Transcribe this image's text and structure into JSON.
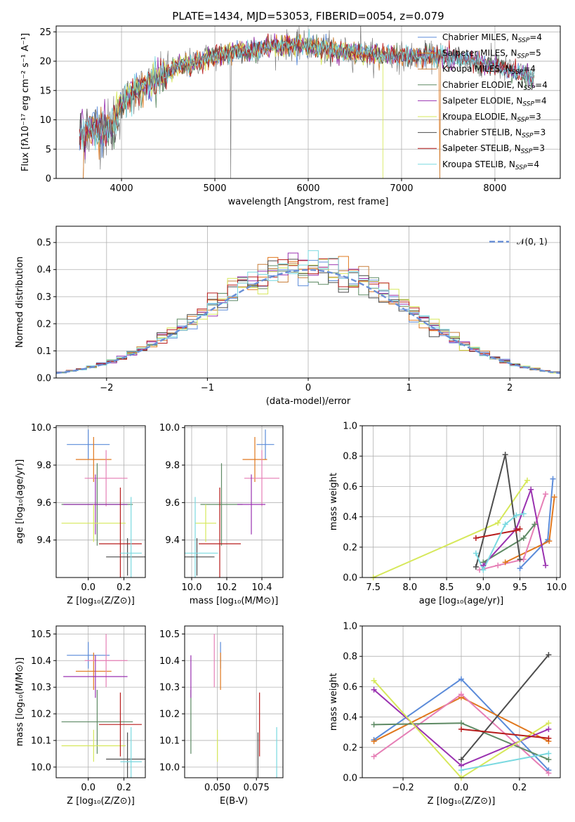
{
  "colors": {
    "Chabrier MILES": "#5b8bd9",
    "Salpeter MILES": "#e0781e",
    "Kroupa MILES": "#c87f3a",
    "Chabrier ELODIE": "#5e8a64",
    "Salpeter ELODIE": "#9a32b0",
    "Kroupa ELODIE": "#d6e85a",
    "Chabrier STELIB": "#4d4d4d",
    "Salpeter STELIB": "#b81c1c",
    "Kroupa STELIB": "#7ad9e0",
    "pink": "#e67fb6",
    "gaussian": "#6a8fd6",
    "data": "#808080"
  },
  "chart_data": [
    {
      "id": "spectrum",
      "type": "line",
      "title": "PLATE=1434, MJD=53053, FIBERID=0054, z=0.079",
      "xlabel": "wavelength [Angstrom, rest frame]",
      "ylabel": "Flux [fλ10⁻¹⁷ erg cm⁻² s⁻¹ A⁻¹]",
      "xlim": [
        3300,
        8700
      ],
      "ylim": [
        0,
        26
      ],
      "xticks": [
        "4000",
        "5000",
        "6000",
        "7000",
        "8000"
      ],
      "yticks": [
        "0",
        "5",
        "10",
        "15",
        "20",
        "25"
      ],
      "legend_position": "top-right",
      "legend": [
        {
          "name": "Chabrier MILES",
          "nssp": "4"
        },
        {
          "name": "Salpeter MILES",
          "nssp": "5"
        },
        {
          "name": "Kroupa MILES",
          "nssp": "4"
        },
        {
          "name": "Chabrier ELODIE",
          "nssp": "4"
        },
        {
          "name": "Salpeter ELODIE",
          "nssp": "4"
        },
        {
          "name": "Kroupa ELODIE",
          "nssp": "3"
        },
        {
          "name": "Chabrier STELIB",
          "nssp": "3"
        },
        {
          "name": "Salpeter STELIB",
          "nssp": "3"
        },
        {
          "name": "Kroupa STELIB",
          "nssp": "4"
        }
      ],
      "continuum": [
        [
          3550,
          7.5
        ],
        [
          3700,
          8.5
        ],
        [
          3850,
          8.2
        ],
        [
          3950,
          11.0
        ],
        [
          4050,
          13.5
        ],
        [
          4200,
          15.5
        ],
        [
          4400,
          17.0
        ],
        [
          4600,
          19.0
        ],
        [
          4800,
          20.0
        ],
        [
          5000,
          21.0
        ],
        [
          5200,
          21.5
        ],
        [
          5400,
          22.0
        ],
        [
          5600,
          22.5
        ],
        [
          5800,
          22.8
        ],
        [
          6000,
          22.5
        ],
        [
          6200,
          22.0
        ],
        [
          6400,
          21.6
        ],
        [
          6600,
          21.3
        ],
        [
          6800,
          21.0
        ],
        [
          7000,
          20.8
        ],
        [
          7200,
          20.8
        ],
        [
          7400,
          20.8
        ],
        [
          7600,
          20.4
        ],
        [
          7800,
          20.0
        ],
        [
          8000,
          19.0
        ],
        [
          8200,
          18.2
        ],
        [
          8400,
          17.0
        ]
      ]
    },
    {
      "id": "residuals",
      "type": "histogram",
      "xlabel": "(data-model)/error",
      "ylabel": "Normed distribution",
      "xlim": [
        -2.5,
        2.5
      ],
      "ylim": [
        0,
        0.56
      ],
      "xticks": [
        "−2",
        "−1",
        "0",
        "1",
        "2"
      ],
      "yticks": [
        "0.0",
        "0.1",
        "0.2",
        "0.3",
        "0.4",
        "0.5"
      ],
      "legend": "𝒩(0, 1)",
      "bin_width": 0.1,
      "bin_start": -2.5
    },
    {
      "id": "age-vs-Z",
      "type": "errorbar",
      "xlabel": "Z [log₁₀(Z/Z⊙)]",
      "ylabel": "age  [log₁₀(age/yr)]",
      "xlim": [
        -0.18,
        0.32
      ],
      "ylim": [
        9.2,
        10.01
      ],
      "xticks": [
        "0.0",
        "0.2"
      ],
      "yticks": [
        "9.4",
        "9.6",
        "9.8",
        "10.0"
      ]
    },
    {
      "id": "age-vs-mass",
      "type": "errorbar",
      "xlabel": "mass [log₁₀(M/M⊙)]",
      "xlim": [
        9.96,
        10.52
      ],
      "ylim": [
        9.2,
        10.01
      ],
      "xticks": [
        "10.0",
        "10.2",
        "10.4"
      ],
      "yticks": [
        "9.4",
        "9.6",
        "9.8",
        "10.0"
      ]
    },
    {
      "id": "weight-vs-age",
      "type": "line",
      "xlabel": "age  [log₁₀(age/yr)]",
      "ylabel": "mass weight",
      "xlim": [
        7.35,
        10.05
      ],
      "ylim": [
        0,
        1
      ],
      "xticks": [
        "7.5",
        "8.0",
        "8.5",
        "9.0",
        "9.5",
        "10.0"
      ],
      "yticks": [
        "0.0",
        "0.2",
        "0.4",
        "0.6",
        "0.8",
        "1.0"
      ]
    },
    {
      "id": "mass-vs-Z",
      "type": "errorbar",
      "xlabel": "Z [log₁₀(Z/Z⊙)]",
      "ylabel": "mass [log₁₀(M/M⊙)]",
      "xlim": [
        -0.18,
        0.32
      ],
      "ylim": [
        9.96,
        10.53
      ],
      "xticks": [
        "0.0",
        "0.2"
      ],
      "yticks": [
        "10.0",
        "10.1",
        "10.2",
        "10.3",
        "10.4",
        "10.5"
      ]
    },
    {
      "id": "mass-vs-ebv",
      "type": "errorbar",
      "xlabel": "E(B-V)",
      "xlim": [
        0.029,
        0.092
      ],
      "ylim": [
        9.96,
        10.53
      ],
      "xticks": [
        "0.050",
        "0.075"
      ],
      "yticks": [
        "10.0",
        "10.1",
        "10.2",
        "10.3",
        "10.4",
        "10.5"
      ]
    },
    {
      "id": "weight-vs-Z",
      "type": "line",
      "xlabel": "Z [log₁₀(Z/Z⊙)]",
      "ylabel": "mass weight",
      "xlim": [
        -0.34,
        0.34
      ],
      "ylim": [
        0,
        1
      ],
      "xticks": [
        "−0.2",
        "0.0",
        "0.2"
      ],
      "yticks": [
        "0.0",
        "0.2",
        "0.4",
        "0.6",
        "0.8",
        "1.0"
      ]
    }
  ],
  "fits": [
    {
      "color": "#5b8bd9",
      "Z": 0.0,
      "Zerr": 0.12,
      "age": 9.91,
      "ageerr": 0.08,
      "mass": 10.42,
      "masserr": 0.05,
      "ebv": 0.052,
      "ebverr": 0.02,
      "ages": [
        9.5,
        9.88,
        9.95
      ],
      "weights": [
        0.06,
        0.25,
        0.65
      ],
      "Zs": [
        -0.3,
        0.0,
        0.3
      ],
      "wz": [
        0.25,
        0.65,
        0.05
      ]
    },
    {
      "color": "#e0781e",
      "Z": 0.03,
      "Zerr": 0.1,
      "age": 9.83,
      "ageerr": 0.12,
      "mass": 10.36,
      "masserr": 0.07,
      "ebv": 0.052,
      "ebverr": 0.015,
      "ages": [
        9.3,
        9.9,
        9.97
      ],
      "weights": [
        0.1,
        0.24,
        0.53
      ],
      "Zs": [
        -0.3,
        0.0,
        0.3
      ],
      "wz": [
        0.24,
        0.53,
        0.24
      ]
    },
    {
      "color": "#e67fb6",
      "Z": 0.1,
      "Zerr": 0.12,
      "age": 9.73,
      "ageerr": 0.15,
      "mass": 10.4,
      "masserr": 0.1,
      "ebv": 0.048,
      "ebverr": 0.02,
      "ages": [
        8.95,
        9.2,
        9.55,
        9.85
      ],
      "weights": [
        0.05,
        0.08,
        0.12,
        0.55
      ],
      "Zs": [
        -0.3,
        0.0,
        0.3
      ],
      "wz": [
        0.14,
        0.55,
        0.03
      ]
    },
    {
      "color": "#5e8a64",
      "Z": 0.05,
      "Zerr": 0.2,
      "age": 9.59,
      "ageerr": 0.22,
      "mass": 10.17,
      "masserr": 0.12,
      "ebv": 0.033,
      "ebverr": 0.06,
      "ages": [
        9.0,
        9.55,
        9.7
      ],
      "weights": [
        0.1,
        0.26,
        0.35
      ],
      "Zs": [
        -0.3,
        0.0,
        0.3
      ],
      "wz": [
        0.35,
        0.36,
        0.12
      ]
    },
    {
      "color": "#9a32b0",
      "Z": 0.04,
      "Zerr": 0.18,
      "age": 9.59,
      "ageerr": 0.16,
      "mass": 10.34,
      "masserr": 0.08,
      "ebv": 0.033,
      "ebverr": 0.08,
      "ages": [
        9.0,
        9.45,
        9.65,
        9.85
      ],
      "weights": [
        0.08,
        0.32,
        0.58,
        0.08
      ],
      "Zs": [
        -0.3,
        0.0,
        0.3
      ],
      "wz": [
        0.58,
        0.08,
        0.32
      ]
    },
    {
      "color": "#d6e85a",
      "Z": 0.03,
      "Zerr": 0.18,
      "age": 9.49,
      "ageerr": 0.1,
      "mass": 10.08,
      "masserr": 0.06,
      "ebv": 0.05,
      "ebverr": 0.02,
      "ages": [
        7.5,
        9.2,
        9.6
      ],
      "weights": [
        0.0,
        0.36,
        0.64
      ],
      "Zs": [
        -0.3,
        0.0,
        0.3
      ],
      "wz": [
        0.64,
        0.0,
        0.36
      ]
    },
    {
      "color": "#4d4d4d",
      "Z": 0.22,
      "Zerr": 0.12,
      "age": 9.31,
      "ageerr": 0.1,
      "mass": 10.03,
      "masserr": 0.1,
      "ebv": 0.076,
      "ebverr": 0.05,
      "ages": [
        8.9,
        9.3,
        9.5
      ],
      "weights": [
        0.07,
        0.81,
        0.12
      ],
      "Zs": [
        0.0,
        0.3
      ],
      "wz": [
        0.12,
        0.81
      ]
    },
    {
      "color": "#b81c1c",
      "Z": 0.18,
      "Zerr": 0.12,
      "age": 9.38,
      "ageerr": 0.3,
      "mass": 10.16,
      "masserr": 0.12,
      "ebv": 0.077,
      "ebverr": 0.05,
      "ages": [
        8.9,
        9.45,
        9.5
      ],
      "weights": [
        0.26,
        0.31,
        0.32
      ],
      "Zs": [
        0.0,
        0.3
      ],
      "wz": [
        0.32,
        0.26
      ]
    },
    {
      "color": "#7ad9e0",
      "Z": 0.24,
      "Zerr": 0.06,
      "age": 9.33,
      "ageerr": 0.3,
      "mass": 10.02,
      "masserr": 0.13,
      "ebv": 0.088,
      "ebverr": 0.03,
      "ages": [
        8.9,
        9.0,
        9.3,
        9.45,
        9.55
      ],
      "weights": [
        0.16,
        0.05,
        0.35,
        0.41,
        0.42
      ],
      "Zs": [
        0.0,
        0.3
      ],
      "wz": [
        0.05,
        0.16
      ]
    }
  ]
}
